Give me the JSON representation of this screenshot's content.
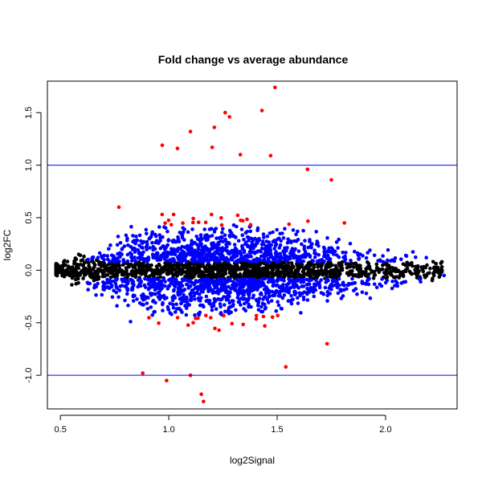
{
  "chart_data": {
    "type": "scatter",
    "title": "Fold change vs average abundance",
    "xlabel": "log2Signal",
    "ylabel": "log2FC",
    "xlim": [
      0.44,
      2.33
    ],
    "ylim": [
      -1.32,
      1.8
    ],
    "x_ticks": [
      "0.5",
      "1.0",
      "1.5",
      "2.0"
    ],
    "y_ticks": [
      "-1.0",
      "-0.5",
      "0.0",
      "0.5",
      "1.0",
      "1.5"
    ],
    "hlines": [
      1.0,
      -1.0
    ],
    "hline_color": "#0000ff",
    "grid": false,
    "legend": "none",
    "series_colors": {
      "background": "#000000",
      "moderate": "#0000ff",
      "extreme": "#ff0000"
    },
    "highlighted_points": [
      {
        "x": 1.49,
        "y": 1.74
      },
      {
        "x": 1.43,
        "y": 1.52
      },
      {
        "x": 1.26,
        "y": 1.5
      },
      {
        "x": 1.28,
        "y": 1.46
      },
      {
        "x": 1.21,
        "y": 1.36
      },
      {
        "x": 1.1,
        "y": 1.32
      },
      {
        "x": 0.97,
        "y": 1.19
      },
      {
        "x": 1.2,
        "y": 1.17
      },
      {
        "x": 1.04,
        "y": 1.16
      },
      {
        "x": 1.33,
        "y": 1.1
      },
      {
        "x": 1.47,
        "y": 1.09
      },
      {
        "x": 1.64,
        "y": 0.96
      },
      {
        "x": 1.75,
        "y": 0.86
      },
      {
        "x": 0.77,
        "y": 0.6
      },
      {
        "x": 1.81,
        "y": 0.45
      },
      {
        "x": 0.88,
        "y": -0.98
      },
      {
        "x": 0.99,
        "y": -1.05
      },
      {
        "x": 1.1,
        "y": -1.0
      },
      {
        "x": 1.15,
        "y": -1.18
      },
      {
        "x": 1.16,
        "y": -1.25
      },
      {
        "x": 1.54,
        "y": -0.92
      },
      {
        "x": 1.73,
        "y": -0.7
      },
      {
        "x": 2.27,
        "y": -0.05
      }
    ]
  }
}
